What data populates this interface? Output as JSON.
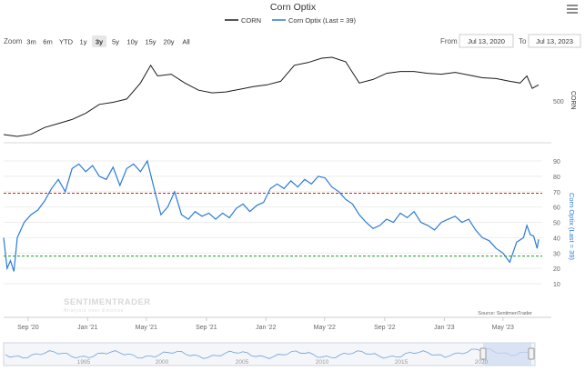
{
  "title": "Corn Optix",
  "legend": [
    {
      "label": "CORN",
      "color": "#1a1a1a"
    },
    {
      "label": "Corn Optix (Last = 39)",
      "color": "#2b7bd6"
    }
  ],
  "zoom": {
    "label": "Zoom",
    "buttons": [
      "3m",
      "6m",
      "YTD",
      "1y",
      "3y",
      "5y",
      "10y",
      "15y",
      "20y",
      "All"
    ],
    "selected": "3y"
  },
  "range": {
    "from_label": "From",
    "from": "Jul 13, 2020",
    "to_label": "To",
    "to": "Jul 13, 2023"
  },
  "menu_icon": "hamburger-menu-icon",
  "watermark": {
    "brand": "SENTIMENTRADER",
    "tagline": "Analysis over Emotion",
    "source": "Source: SentimenTrader"
  },
  "navigator_labels": [
    "1995",
    "2000",
    "2005",
    "2010",
    "2015",
    "2020"
  ],
  "chart_data": [
    {
      "type": "line",
      "title": "",
      "ylabel": "CORN",
      "yticks": [
        500
      ],
      "yticks_right": [
        "500"
      ],
      "series": [
        {
          "name": "CORN",
          "color": "#1a1a1a",
          "points": [
            [
              "2020-07-13",
              310
            ],
            [
              "2020-08-10",
              300
            ],
            [
              "2020-09-07",
              312
            ],
            [
              "2020-10-05",
              350
            ],
            [
              "2020-11-02",
              372
            ],
            [
              "2020-11-30",
              395
            ],
            [
              "2020-12-28",
              430
            ],
            [
              "2021-01-25",
              480
            ],
            [
              "2021-02-22",
              492
            ],
            [
              "2021-03-22",
              510
            ],
            [
              "2021-04-19",
              600
            ],
            [
              "2021-05-10",
              700
            ],
            [
              "2021-05-24",
              640
            ],
            [
              "2021-06-21",
              650
            ],
            [
              "2021-07-19",
              600
            ],
            [
              "2021-08-16",
              560
            ],
            [
              "2021-09-13",
              545
            ],
            [
              "2021-10-11",
              550
            ],
            [
              "2021-11-08",
              565
            ],
            [
              "2021-12-06",
              580
            ],
            [
              "2022-01-03",
              590
            ],
            [
              "2022-01-31",
              610
            ],
            [
              "2022-02-28",
              700
            ],
            [
              "2022-03-28",
              715
            ],
            [
              "2022-04-25",
              740
            ],
            [
              "2022-05-16",
              745
            ],
            [
              "2022-06-13",
              720
            ],
            [
              "2022-07-11",
              600
            ],
            [
              "2022-08-08",
              620
            ],
            [
              "2022-09-05",
              655
            ],
            [
              "2022-10-03",
              665
            ],
            [
              "2022-10-31",
              665
            ],
            [
              "2022-11-28",
              655
            ],
            [
              "2022-12-26",
              650
            ],
            [
              "2023-01-23",
              660
            ],
            [
              "2023-02-20",
              645
            ],
            [
              "2023-03-20",
              630
            ],
            [
              "2023-04-17",
              625
            ],
            [
              "2023-05-15",
              610
            ],
            [
              "2023-06-05",
              600
            ],
            [
              "2023-06-19",
              640
            ],
            [
              "2023-06-30",
              570
            ],
            [
              "2023-07-13",
              590
            ]
          ]
        }
      ]
    },
    {
      "type": "line",
      "title": "",
      "ylabel": "Corn Optix (Last = 39)",
      "ylim": [
        10,
        90
      ],
      "yticks": [
        10,
        20,
        30,
        40,
        50,
        60,
        70,
        80,
        90
      ],
      "xticks": [
        "Sep '20",
        "Jan '21",
        "May '21",
        "Sep '21",
        "Jan '22",
        "May '22",
        "Sep '22",
        "Jan '23",
        "May '23"
      ],
      "reference_lines": [
        {
          "value": 69,
          "color": "#e02020"
        },
        {
          "value": 28,
          "color": "#1f9a1f"
        }
      ],
      "series": [
        {
          "name": "Corn Optix (Last = 39)",
          "color": "#2b7bd6",
          "points": [
            [
              "2020-07-13",
              40
            ],
            [
              "2020-07-20",
              20
            ],
            [
              "2020-07-27",
              25
            ],
            [
              "2020-08-03",
              18
            ],
            [
              "2020-08-10",
              40
            ],
            [
              "2020-08-24",
              50
            ],
            [
              "2020-09-07",
              55
            ],
            [
              "2020-09-21",
              58
            ],
            [
              "2020-10-05",
              64
            ],
            [
              "2020-10-19",
              72
            ],
            [
              "2020-11-02",
              78
            ],
            [
              "2020-11-16",
              70
            ],
            [
              "2020-11-30",
              85
            ],
            [
              "2020-12-14",
              88
            ],
            [
              "2020-12-28",
              83
            ],
            [
              "2021-01-11",
              87
            ],
            [
              "2021-01-25",
              80
            ],
            [
              "2021-02-08",
              78
            ],
            [
              "2021-02-22",
              86
            ],
            [
              "2021-03-08",
              74
            ],
            [
              "2021-03-22",
              85
            ],
            [
              "2021-04-05",
              88
            ],
            [
              "2021-04-19",
              83
            ],
            [
              "2021-05-03",
              90
            ],
            [
              "2021-05-17",
              72
            ],
            [
              "2021-05-31",
              55
            ],
            [
              "2021-06-14",
              60
            ],
            [
              "2021-06-28",
              70
            ],
            [
              "2021-07-12",
              55
            ],
            [
              "2021-07-26",
              52
            ],
            [
              "2021-08-09",
              57
            ],
            [
              "2021-08-23",
              54
            ],
            [
              "2021-09-06",
              56
            ],
            [
              "2021-09-20",
              52
            ],
            [
              "2021-10-04",
              56
            ],
            [
              "2021-10-18",
              53
            ],
            [
              "2021-11-01",
              59
            ],
            [
              "2021-11-15",
              62
            ],
            [
              "2021-11-29",
              57
            ],
            [
              "2021-12-13",
              61
            ],
            [
              "2021-12-27",
              63
            ],
            [
              "2022-01-10",
              72
            ],
            [
              "2022-01-24",
              75
            ],
            [
              "2022-02-07",
              72
            ],
            [
              "2022-02-21",
              77
            ],
            [
              "2022-03-07",
              73
            ],
            [
              "2022-03-21",
              78
            ],
            [
              "2022-04-04",
              75
            ],
            [
              "2022-04-18",
              80
            ],
            [
              "2022-05-02",
              79
            ],
            [
              "2022-05-16",
              73
            ],
            [
              "2022-05-30",
              70
            ],
            [
              "2022-06-13",
              65
            ],
            [
              "2022-06-27",
              62
            ],
            [
              "2022-07-11",
              55
            ],
            [
              "2022-07-25",
              50
            ],
            [
              "2022-08-08",
              46
            ],
            [
              "2022-08-22",
              48
            ],
            [
              "2022-09-05",
              52
            ],
            [
              "2022-09-19",
              50
            ],
            [
              "2022-10-03",
              56
            ],
            [
              "2022-10-17",
              53
            ],
            [
              "2022-10-31",
              57
            ],
            [
              "2022-11-14",
              50
            ],
            [
              "2022-11-28",
              48
            ],
            [
              "2022-12-12",
              45
            ],
            [
              "2022-12-26",
              50
            ],
            [
              "2023-01-09",
              52
            ],
            [
              "2023-01-23",
              54
            ],
            [
              "2023-02-06",
              50
            ],
            [
              "2023-02-20",
              52
            ],
            [
              "2023-03-06",
              45
            ],
            [
              "2023-03-20",
              40
            ],
            [
              "2023-04-03",
              38
            ],
            [
              "2023-04-17",
              33
            ],
            [
              "2023-05-01",
              30
            ],
            [
              "2023-05-15",
              24
            ],
            [
              "2023-05-29",
              37
            ],
            [
              "2023-06-12",
              40
            ],
            [
              "2023-06-19",
              48
            ],
            [
              "2023-06-26",
              42
            ],
            [
              "2023-07-03",
              41
            ],
            [
              "2023-07-10",
              33
            ],
            [
              "2023-07-13",
              39
            ]
          ]
        }
      ]
    }
  ]
}
